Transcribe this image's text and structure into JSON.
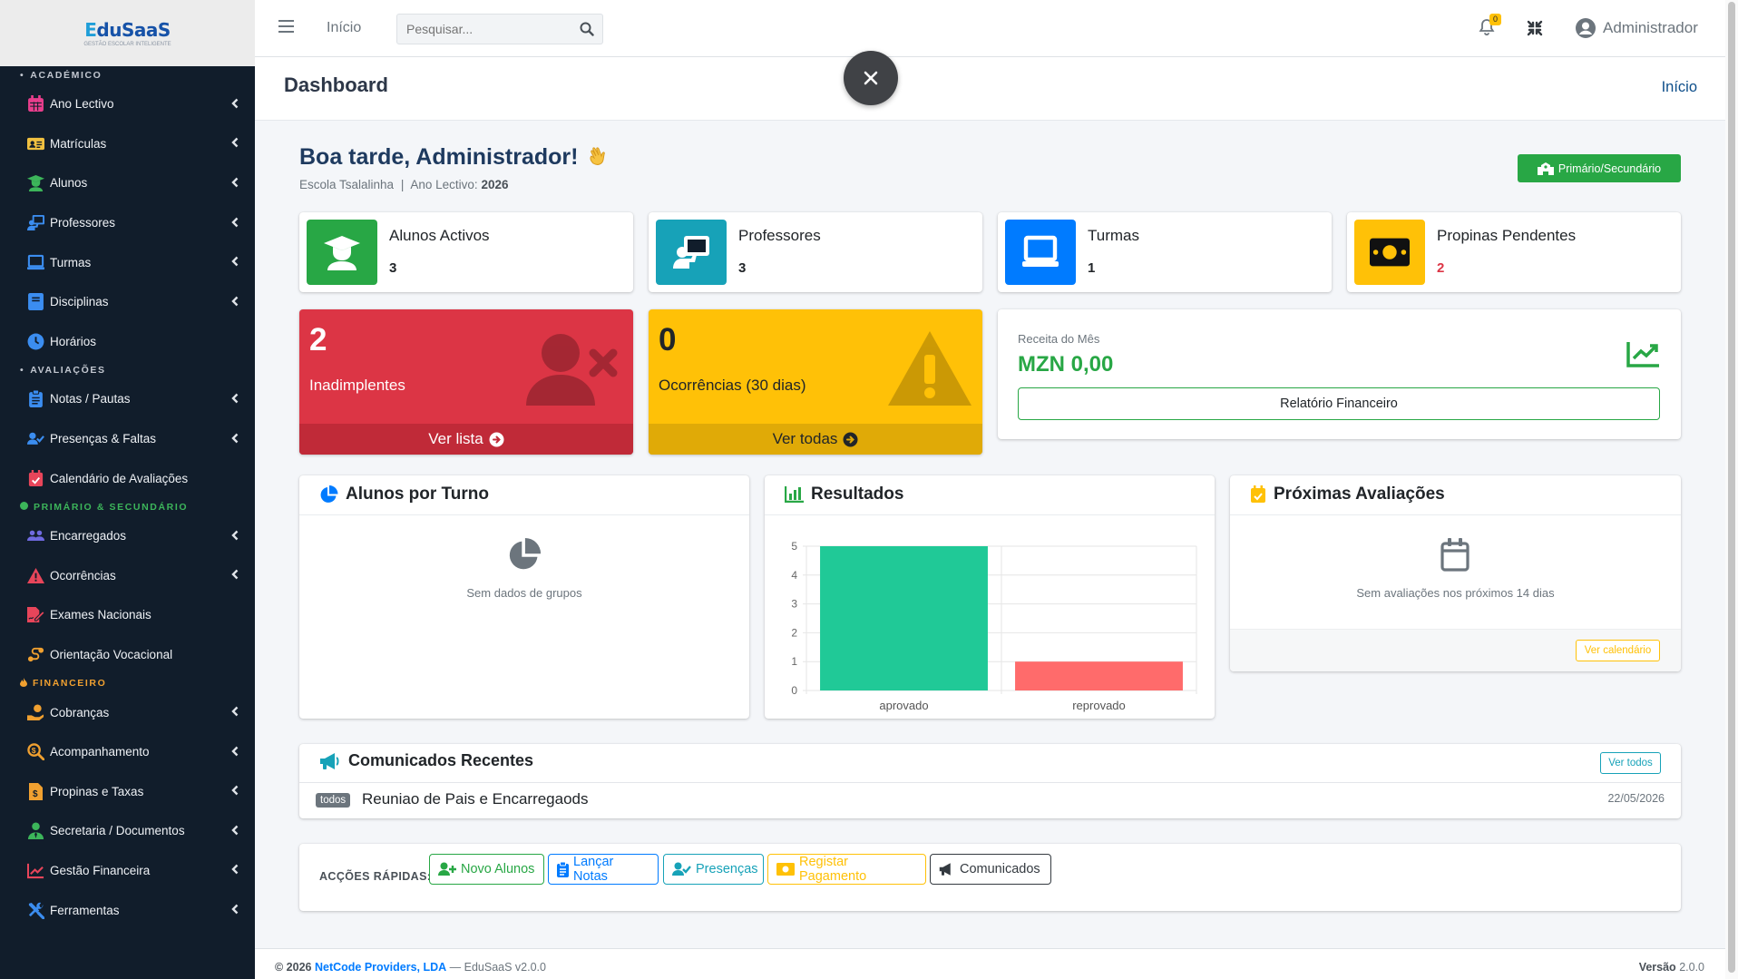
{
  "brand": {
    "logo_e": "E",
    "logo_rest": "duSaaS",
    "tagline": "GESTÃO ESCOLAR INTELIGENTE"
  },
  "sidebar": {
    "sections": [
      {
        "header": "ACADÉMICO",
        "items": [
          {
            "label": "Ano Lectivo",
            "icon": "calendar-icon",
            "chevron": true
          },
          {
            "label": "Matrículas",
            "icon": "id-card-icon",
            "chevron": true
          },
          {
            "label": "Alunos",
            "icon": "graduate-icon",
            "chevron": true
          },
          {
            "label": "Professores",
            "icon": "teacher-icon",
            "chevron": true
          },
          {
            "label": "Turmas",
            "icon": "laptop-icon",
            "chevron": true
          },
          {
            "label": "Disciplinas",
            "icon": "book-icon",
            "chevron": true
          },
          {
            "label": "Horários",
            "icon": "clock-icon",
            "chevron": false
          }
        ]
      },
      {
        "header": "AVALIAÇÕES",
        "items": [
          {
            "label": "Notas / Pautas",
            "icon": "clipboard-icon",
            "chevron": true
          },
          {
            "label": "Presenças & Faltas",
            "icon": "user-check-icon",
            "chevron": true
          },
          {
            "label": "Calendário de Avaliações",
            "icon": "calendar-check-icon",
            "chevron": false
          }
        ]
      },
      {
        "header": "PRIMÁRIO & SECUNDÁRIO",
        "items": [
          {
            "label": "Encarregados",
            "icon": "users-icon",
            "chevron": true
          },
          {
            "label": "Ocorrências",
            "icon": "warning-icon",
            "chevron": true
          },
          {
            "label": "Exames Nacionais",
            "icon": "file-signature-icon",
            "chevron": false
          },
          {
            "label": "Orientação Vocacional",
            "icon": "route-icon",
            "chevron": false
          }
        ]
      },
      {
        "header": "FINANCEIRO",
        "items": [
          {
            "label": "Cobranças",
            "icon": "hand-coin-icon",
            "chevron": true
          },
          {
            "label": "Acompanhamento",
            "icon": "search-dollar-icon",
            "chevron": true
          },
          {
            "label": "Propinas e Taxas",
            "icon": "invoice-icon",
            "chevron": true
          },
          {
            "label": "Secretaria / Documentos",
            "icon": "user-tie-icon",
            "chevron": true
          },
          {
            "label": "Gestão Financeira",
            "icon": "chart-line-icon",
            "chevron": true
          },
          {
            "label": "Ferramentas",
            "icon": "tools-icon",
            "chevron": true
          }
        ]
      }
    ]
  },
  "topbar": {
    "home": "Início",
    "search_placeholder": "Pesquisar...",
    "notif_count": "0",
    "user": "Administrador"
  },
  "header": {
    "title": "Dashboard",
    "breadcrumb": "Início"
  },
  "welcome": {
    "greeting": "Boa tarde, Administrador!",
    "school": "Escola Tsalalinha",
    "sep": "|",
    "year_label": "Ano Lectivo:",
    "year": "2026",
    "level_button": "Primário/Secundário"
  },
  "stats": [
    {
      "label": "Alunos Activos",
      "value": "3",
      "color": "#28a745",
      "icon": "graduate-icon"
    },
    {
      "label": "Professores",
      "value": "3",
      "color": "#17a2b8",
      "icon": "teacher-icon"
    },
    {
      "label": "Turmas",
      "value": "1",
      "color": "#007bff",
      "icon": "laptop-icon"
    },
    {
      "label": "Propinas Pendentes",
      "value": "2",
      "color": "#ffc107",
      "icon": "money-icon"
    }
  ],
  "boxes": [
    {
      "value": "2",
      "label": "Inadimplentes",
      "link": "Ver lista",
      "color": "#dc3545"
    },
    {
      "value": "0",
      "label": "Ocorrências (30 dias)",
      "link": "Ver todas",
      "color": "#ffc107"
    }
  ],
  "revenue": {
    "label": "Receita do Mês",
    "value": "MZN 0,00",
    "button": "Relatório Financeiro"
  },
  "panels": {
    "turno": {
      "title": "Alunos por Turno",
      "empty": "Sem dados de grupos"
    },
    "resultados": {
      "title": "Resultados"
    },
    "avaliacoes": {
      "title": "Próximas Avaliações",
      "empty": "Sem avaliações nos próximos 14 dias",
      "button": "Ver calendário"
    }
  },
  "chart_data": {
    "type": "bar",
    "categories": [
      "aprovado",
      "reprovado"
    ],
    "values": [
      5,
      1
    ],
    "colors": [
      "#20c997",
      "#ff6b6b"
    ],
    "ylim": [
      0,
      5
    ],
    "yticks": [
      0,
      1,
      2,
      3,
      4,
      5
    ],
    "grid": true
  },
  "comunicados": {
    "title": "Comunicados Recentes",
    "button": "Ver todos",
    "items": [
      {
        "tag": "todos",
        "text": "Reuniao de Pais e Encarregaods",
        "date": "22/05/2026"
      }
    ]
  },
  "quick": {
    "label": "ACÇÕES RÁPIDAS:",
    "buttons": [
      {
        "label": "Novo Alunos",
        "color": "#28a745"
      },
      {
        "label": "Lançar Notas",
        "color": "#007bff"
      },
      {
        "label": "Presenças",
        "color": "#17a2b8"
      },
      {
        "label": "Registar Pagamento",
        "color": "#ffc107"
      },
      {
        "label": "Comunicados",
        "color": "#343a40"
      }
    ]
  },
  "footer": {
    "copy": "© 2026",
    "company": "NetCode Providers, LDA",
    "suffix": "— EduSaaS v2.0.0",
    "version_label": "Versão",
    "version": "2.0.0"
  }
}
